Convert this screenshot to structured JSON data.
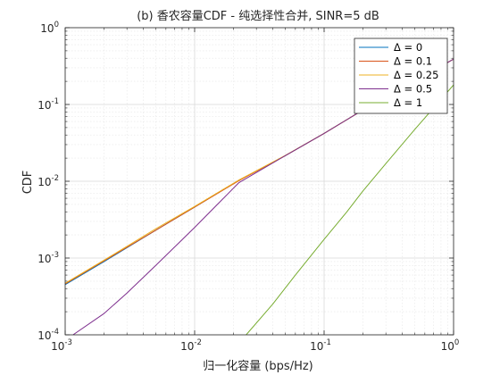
{
  "chart_data": {
    "type": "line",
    "title": "(b) 香农容量CDF - 纯选择性合并, SINR=5 dB",
    "xlabel": "归一化容量 (bps/Hz)",
    "ylabel": "CDF",
    "xscale": "log",
    "yscale": "log",
    "xlim": [
      0.001,
      1
    ],
    "ylim": [
      0.0001,
      1
    ],
    "grid": true,
    "legend_position": "top-right",
    "x_ticks": [
      {
        "base": "10",
        "exp": "-3",
        "value": 0.001
      },
      {
        "base": "10",
        "exp": "-2",
        "value": 0.01
      },
      {
        "base": "10",
        "exp": "-1",
        "value": 0.1
      },
      {
        "base": "10",
        "exp": "0",
        "value": 1
      }
    ],
    "y_ticks": [
      {
        "base": "10",
        "exp": "-4",
        "value": 0.0001
      },
      {
        "base": "10",
        "exp": "-3",
        "value": 0.001
      },
      {
        "base": "10",
        "exp": "-2",
        "value": 0.01
      },
      {
        "base": "10",
        "exp": "-1",
        "value": 0.1
      },
      {
        "base": "10",
        "exp": "0",
        "value": 1
      }
    ],
    "series": [
      {
        "name": "Δ = 0",
        "color": "#0072BD",
        "x": [
          0.001,
          0.002,
          0.005,
          0.01,
          0.022,
          0.05,
          0.1,
          0.2,
          0.5,
          1
        ],
        "y": [
          0.00045,
          0.0009,
          0.0023,
          0.0046,
          0.0103,
          0.0215,
          0.042,
          0.085,
          0.2,
          0.39
        ]
      },
      {
        "name": "Δ = 0.1",
        "color": "#D95319",
        "x": [
          0.001,
          0.002,
          0.005,
          0.01,
          0.022,
          0.05,
          0.1,
          0.2,
          0.5,
          1
        ],
        "y": [
          0.00046,
          0.00092,
          0.0023,
          0.0046,
          0.0102,
          0.0215,
          0.042,
          0.085,
          0.2,
          0.39
        ]
      },
      {
        "name": "Δ = 0.25",
        "color": "#EDB120",
        "x": [
          0.001,
          0.002,
          0.005,
          0.01,
          0.022,
          0.05,
          0.1,
          0.2,
          0.5,
          1
        ],
        "y": [
          0.00047,
          0.00094,
          0.0024,
          0.0047,
          0.0104,
          0.0216,
          0.042,
          0.085,
          0.2,
          0.39
        ]
      },
      {
        "name": "Δ = 0.5",
        "color": "#7E2F8E",
        "x": [
          0.00115,
          0.002,
          0.003,
          0.005,
          0.01,
          0.015,
          0.022,
          0.05,
          0.1,
          0.2,
          0.5,
          1
        ],
        "y": [
          0.0001,
          0.00019,
          0.00035,
          0.0008,
          0.0025,
          0.005,
          0.0096,
          0.0215,
          0.042,
          0.085,
          0.2,
          0.39
        ]
      },
      {
        "name": "Δ = 1",
        "color": "#77AC30",
        "x": [
          0.025,
          0.04,
          0.06,
          0.1,
          0.15,
          0.2,
          0.3,
          0.5,
          0.7,
          1
        ],
        "y": [
          0.0001,
          0.00025,
          0.0006,
          0.00175,
          0.004,
          0.0075,
          0.017,
          0.047,
          0.09,
          0.18
        ]
      }
    ]
  }
}
